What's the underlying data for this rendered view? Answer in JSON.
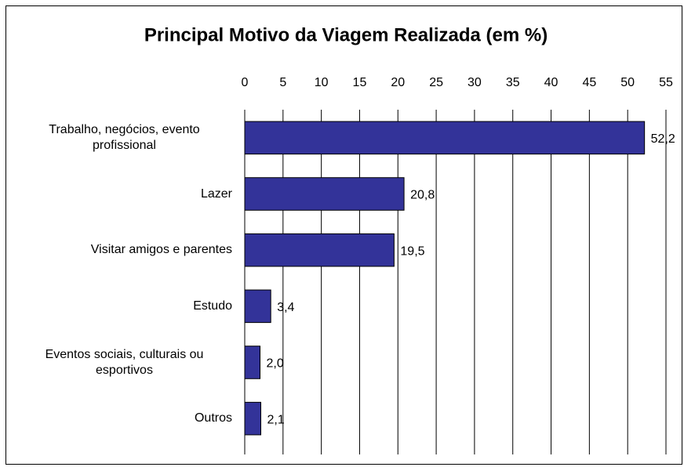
{
  "chart_data": {
    "type": "bar",
    "orientation": "horizontal",
    "title": "Principal Motivo da Viagem Realizada (em %)",
    "categories": [
      "Trabalho, negócios, evento profissional",
      "Lazer",
      "Visitar amigos e parentes",
      "Estudo",
      "Eventos sociais, culturais ou esportivos",
      "Outros"
    ],
    "values": [
      52.2,
      20.8,
      19.5,
      3.4,
      2.0,
      2.1
    ],
    "value_labels": [
      "52,2",
      "20,8",
      "19,5",
      "3,4",
      "2,0",
      "2,1"
    ],
    "color": "#333399",
    "xlim": [
      0,
      55
    ],
    "xticks": [
      0,
      5,
      10,
      15,
      20,
      25,
      30,
      35,
      40,
      45,
      50,
      55
    ],
    "grid": true
  }
}
